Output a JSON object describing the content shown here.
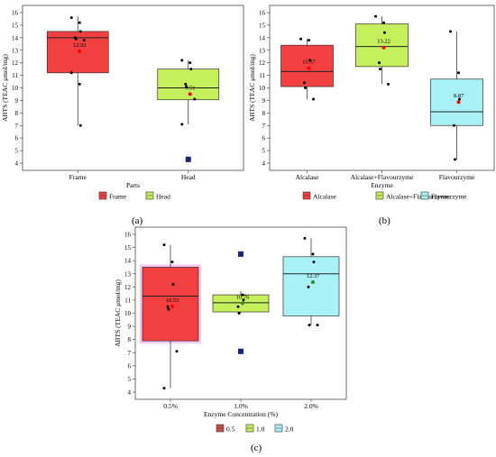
{
  "panel_labels": [
    "(a)",
    "(b)",
    "(c)"
  ],
  "colors": {
    "red": "#f23f40",
    "green": "#c5ef5b",
    "cyan": "#a8f1f7",
    "brown": "#c8514a",
    "mean_red": "#ff0000",
    "mean_green": "#2e8b2e",
    "outlier_blue": "#1a237e",
    "point": "#000000"
  },
  "chart_data": [
    {
      "type": "box",
      "panel": "(a)",
      "title": "",
      "xlabel": "Parts",
      "ylabel": "ABTS (TEAC μmol/mg)",
      "ylim": [
        4,
        16
      ],
      "yticks": [
        4,
        5,
        6,
        7,
        8,
        9,
        10,
        11,
        12,
        13,
        14,
        15,
        16
      ],
      "categories": [
        "Frame",
        "Head"
      ],
      "legend": {
        "position": "bottom",
        "entries": [
          "Frame",
          "Head"
        ]
      },
      "boxes": [
        {
          "category": "Frame",
          "q1": 11.2,
          "median": 14.0,
          "q3": 14.5,
          "whisker_low": 7.0,
          "whisker_high": 15.7,
          "mean": 12.92,
          "mean_label": "12.92",
          "points": [
            15.6,
            15.2,
            14.5,
            14.0,
            13.9,
            13.8,
            11.2,
            10.3,
            7.0
          ],
          "outliers": []
        },
        {
          "category": "Head",
          "q1": 9.05,
          "median": 10.0,
          "q3": 11.5,
          "whisker_low": 7.1,
          "whisker_high": 12.2,
          "mean": 9.51,
          "mean_label": "9.51",
          "points": [
            12.2,
            12.0,
            11.5,
            10.3,
            10.1,
            9.1,
            7.1,
            4.3
          ],
          "outliers": [
            4.3
          ]
        }
      ]
    },
    {
      "type": "box",
      "panel": "(b)",
      "title": "",
      "xlabel": "Enzyme",
      "ylabel": "ABTS (TEAC μmol/mg)",
      "ylim": [
        4,
        16
      ],
      "yticks": [
        4,
        5,
        6,
        7,
        8,
        9,
        10,
        11,
        12,
        13,
        14,
        15,
        16
      ],
      "categories": [
        "Alcalase",
        "Alcalase+Flavourzyme",
        "Flavourzyme"
      ],
      "legend": {
        "position": "bottom",
        "entries": [
          "Alcalase",
          "Alcalase+Flavourzyme",
          "Flavourzyme"
        ]
      },
      "boxes": [
        {
          "category": "Alcalase",
          "q1": 10.1,
          "median": 11.3,
          "q3": 13.4,
          "whisker_low": 9.1,
          "whisker_high": 13.9,
          "mean": 11.57,
          "mean_label": "11.57",
          "points": [
            13.9,
            13.8,
            12.2,
            10.4,
            10.0,
            9.1
          ],
          "outliers": []
        },
        {
          "category": "Alcalase+Flavourzyme",
          "q1": 11.7,
          "median": 13.3,
          "q3": 15.1,
          "whisker_low": 10.3,
          "whisker_high": 15.7,
          "mean": 13.22,
          "mean_label": "13.22",
          "points": [
            15.7,
            15.2,
            14.4,
            12.0,
            11.5,
            10.3
          ],
          "outliers": []
        },
        {
          "category": "Flavourzyme",
          "q1": 7.0,
          "median": 8.1,
          "q3": 10.7,
          "whisker_low": 4.3,
          "whisker_high": 14.5,
          "mean": 8.87,
          "mean_label": "8.87",
          "points": [
            14.5,
            11.2,
            9.1,
            7.0,
            4.3
          ],
          "outliers": []
        }
      ]
    },
    {
      "type": "box",
      "panel": "(c)",
      "title": "",
      "xlabel": "Enzyme Concentration (%)",
      "ylabel": "ABTS (TEAC μmol/mg)",
      "ylim": [
        4,
        16
      ],
      "yticks": [
        4,
        5,
        6,
        7,
        8,
        9,
        10,
        11,
        12,
        13,
        14,
        15,
        16
      ],
      "categories": [
        "0.5%",
        "1.0%",
        "2.0%"
      ],
      "legend": {
        "position": "bottom",
        "entries": [
          "0.5",
          "1.0",
          "2.0"
        ]
      },
      "boxes": [
        {
          "category": "0.5%",
          "q1": 7.9,
          "median": 11.3,
          "q3": 13.5,
          "whisker_low": 4.3,
          "whisker_high": 15.2,
          "mean": 10.53,
          "mean_label": "10.53",
          "points": [
            15.2,
            13.9,
            12.2,
            10.5,
            10.3,
            7.1,
            4.3
          ],
          "outliers": []
        },
        {
          "category": "1.0%",
          "q1": 10.1,
          "median": 10.8,
          "q3": 11.4,
          "whisker_low": 10.0,
          "whisker_high": 11.7,
          "mean": 10.76,
          "mean_label": "10.76",
          "points": [
            14.5,
            11.4,
            11.0,
            10.5,
            10.0,
            7.1
          ],
          "outliers": [
            14.5,
            7.1
          ]
        },
        {
          "category": "2.0%",
          "q1": 9.8,
          "median": 13.0,
          "q3": 14.3,
          "whisker_low": 9.1,
          "whisker_high": 15.7,
          "mean": 12.37,
          "mean_label": "12.37",
          "points": [
            15.7,
            14.5,
            13.9,
            12.0,
            9.1,
            9.1
          ],
          "outliers": []
        }
      ]
    }
  ]
}
